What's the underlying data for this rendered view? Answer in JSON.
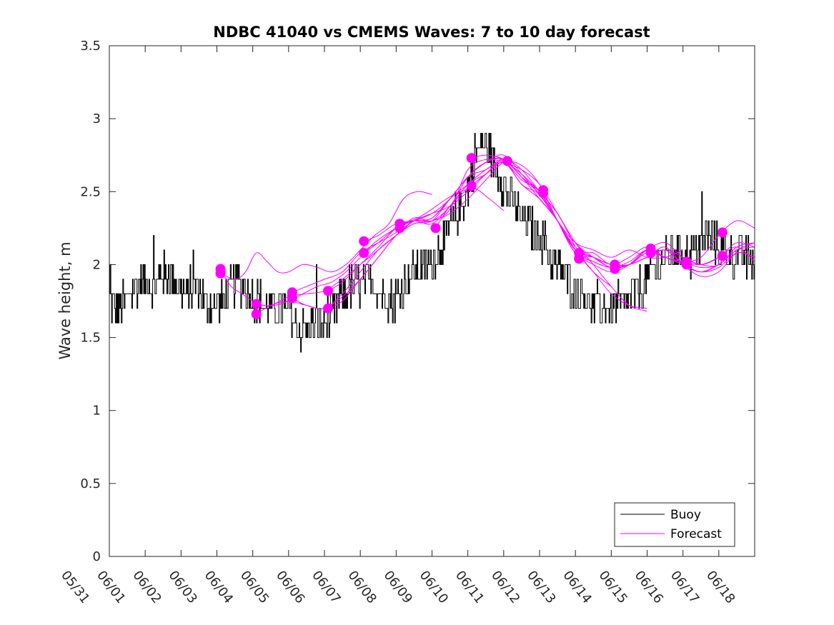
{
  "chart_data": {
    "type": "line",
    "title": "NDBC 41040 vs CMEMS Waves: 7 to 10 day forecast",
    "xlabel": "",
    "ylabel": "Wave height, m",
    "xlim": [
      0,
      18
    ],
    "ylim": [
      0,
      3.5
    ],
    "categories": [
      "05/31",
      "06/01",
      "06/02",
      "06/03",
      "06/04",
      "06/05",
      "06/06",
      "06/07",
      "06/08",
      "06/09",
      "06/10",
      "06/11",
      "06/12",
      "06/13",
      "06/14",
      "06/15",
      "06/16",
      "06/17",
      "06/18"
    ],
    "yticks": [
      "0",
      "0.5",
      "1",
      "1.5",
      "2",
      "2.5",
      "3",
      "3.5"
    ],
    "grid": false,
    "legend_position": "bottom-right",
    "colors": {
      "buoy": "#000000",
      "forecast": "#ff00ff"
    },
    "series": [
      {
        "name": "Buoy",
        "x": [
          0,
          0.3,
          0.6,
          0.9,
          1.2,
          1.5,
          1.8,
          2.1,
          2.4,
          2.7,
          3.0,
          3.3,
          3.6,
          3.9,
          4.2,
          4.5,
          4.8,
          5.1,
          5.3,
          5.5,
          5.8,
          6.1,
          6.4,
          6.7,
          7.0,
          7.3,
          7.6,
          7.9,
          8.2,
          8.5,
          8.8,
          9.1,
          9.4,
          9.7,
          10.0,
          10.2,
          10.4,
          10.6,
          10.8,
          11.1,
          11.4,
          11.7,
          12.0,
          12.3,
          12.6,
          12.9,
          13.2,
          13.5,
          13.8,
          14.1,
          14.4,
          14.7,
          15.0,
          15.3,
          15.6,
          15.9,
          16.2,
          16.5,
          16.8,
          17.1,
          17.4,
          17.7,
          18.0
        ],
        "values": [
          1.75,
          1.7,
          1.8,
          1.9,
          1.85,
          1.95,
          1.9,
          1.8,
          1.85,
          1.75,
          1.7,
          1.8,
          1.9,
          1.8,
          1.75,
          1.7,
          1.7,
          1.65,
          1.55,
          1.55,
          1.6,
          1.6,
          1.75,
          1.85,
          1.85,
          1.9,
          1.8,
          1.75,
          1.85,
          1.95,
          2.0,
          2.05,
          2.2,
          2.35,
          2.5,
          2.75,
          2.85,
          2.75,
          2.65,
          2.5,
          2.35,
          2.25,
          2.2,
          2.05,
          1.95,
          1.85,
          1.8,
          1.7,
          1.7,
          1.7,
          1.75,
          1.8,
          1.9,
          2.0,
          2.05,
          2.1,
          2.05,
          2.15,
          2.2,
          2.1,
          2.05,
          2.05,
          2.0
        ]
      },
      {
        "name": "Forecast",
        "runs": [
          {
            "x": [
              3.1,
              3.4,
              3.7,
              4.0,
              4.3,
              4.6,
              5.0,
              5.4,
              5.8,
              6.2,
              6.6,
              7.0,
              7.4,
              7.8,
              8.2,
              8.6,
              9.0,
              9.4,
              9.8,
              10.2,
              10.6,
              11.0
            ],
            "values": [
              1.96,
              1.85,
              1.8,
              1.75,
              1.72,
              1.72,
              1.75,
              1.8,
              1.85,
              1.88,
              1.95,
              2.05,
              2.15,
              2.22,
              2.28,
              2.32,
              2.38,
              2.45,
              2.5,
              2.52,
              2.45,
              2.37
            ]
          },
          {
            "x": [
              3.1,
              3.5,
              3.8,
              4.1,
              4.4,
              4.7,
              5.0,
              5.4,
              5.8,
              6.2,
              6.6,
              7.0,
              7.4,
              7.8,
              8.2,
              8.6,
              9.0
            ],
            "values": [
              1.94,
              1.9,
              1.95,
              2.08,
              2.02,
              1.95,
              1.95,
              2.0,
              1.98,
              1.95,
              2.0,
              2.1,
              2.2,
              2.28,
              2.45,
              2.5,
              2.48
            ]
          },
          {
            "x": [
              4.1,
              4.5,
              5.0,
              5.5,
              6.0,
              6.5,
              7.0,
              7.5,
              8.0,
              8.5,
              9.0,
              9.5,
              10.0,
              10.5,
              11.0,
              11.5,
              12.0,
              12.5,
              13.0
            ],
            "values": [
              1.73,
              1.72,
              1.78,
              1.8,
              1.82,
              1.9,
              2.0,
              2.1,
              2.2,
              2.3,
              2.35,
              2.4,
              2.5,
              2.62,
              2.72,
              2.65,
              2.5,
              2.35,
              2.12
            ]
          },
          {
            "x": [
              4.1,
              4.5,
              5.0,
              5.5,
              6.0,
              6.5,
              7.0,
              7.5,
              8.0,
              8.5,
              9.0,
              9.5,
              10.0,
              10.5,
              11.0,
              11.5,
              12.0,
              12.5,
              13.0,
              13.5,
              14.0
            ],
            "values": [
              1.66,
              1.72,
              1.75,
              1.72,
              1.7,
              1.8,
              1.95,
              2.1,
              2.2,
              2.28,
              2.3,
              2.35,
              2.45,
              2.58,
              2.7,
              2.68,
              2.55,
              2.3,
              2.1,
              1.95,
              1.85
            ]
          },
          {
            "x": [
              5.1,
              5.5,
              6.0,
              6.5,
              7.0,
              7.5,
              8.0,
              8.5,
              9.0,
              9.5,
              10.0,
              10.5,
              11.0,
              11.5,
              12.0,
              12.5,
              13.0,
              13.5,
              14.0,
              14.5,
              15.0
            ],
            "values": [
              1.77,
              1.72,
              1.7,
              1.78,
              1.9,
              2.05,
              2.2,
              2.3,
              2.3,
              2.4,
              2.6,
              2.7,
              2.72,
              2.6,
              2.45,
              2.3,
              2.1,
              1.95,
              1.8,
              1.72,
              1.7
            ]
          },
          {
            "x": [
              5.1,
              5.5,
              6.0,
              6.5,
              7.0,
              7.5,
              8.0,
              8.5,
              9.0,
              9.5,
              10.0,
              10.5,
              11.0,
              11.5,
              12.0,
              12.5,
              13.0,
              13.5,
              14.0,
              14.5,
              15.0
            ],
            "values": [
              1.81,
              1.85,
              1.9,
              1.95,
              2.08,
              2.15,
              2.22,
              2.32,
              2.3,
              2.38,
              2.65,
              2.72,
              2.7,
              2.65,
              2.55,
              2.35,
              2.15,
              2.0,
              1.85,
              1.72,
              1.68
            ]
          },
          {
            "x": [
              6.1,
              6.5,
              7.0,
              7.5,
              8.0,
              8.5,
              9.0,
              9.5,
              10.0,
              10.5,
              11.0,
              11.5,
              12.0,
              12.5,
              13.0,
              13.5,
              14.0,
              14.5,
              15.0,
              15.5,
              16.0
            ],
            "values": [
              1.82,
              1.88,
              2.0,
              2.12,
              2.25,
              2.3,
              2.35,
              2.45,
              2.6,
              2.65,
              2.72,
              2.6,
              2.5,
              2.3,
              2.15,
              2.1,
              2.05,
              2.1,
              2.05,
              2.05,
              2.1
            ]
          },
          {
            "x": [
              6.1,
              6.5,
              7.0,
              7.5,
              8.0,
              8.5,
              9.0,
              9.5,
              10.0,
              10.5,
              11.0,
              11.5,
              12.0,
              12.5,
              13.0,
              13.5,
              14.0,
              14.5,
              15.0,
              15.5,
              16.0,
              16.5,
              17.0
            ],
            "values": [
              1.7,
              1.75,
              1.9,
              2.05,
              2.2,
              2.28,
              2.3,
              2.45,
              2.6,
              2.7,
              2.75,
              2.62,
              2.48,
              2.3,
              2.12,
              2.05,
              2.0,
              2.0,
              2.05,
              2.1,
              2.0,
              1.95,
              2.0
            ]
          },
          {
            "x": [
              7.1,
              7.5,
              8.0,
              8.5,
              9.0,
              9.5,
              10.0,
              10.5,
              11.0,
              11.5,
              12.0,
              12.5,
              13.0,
              13.5,
              14.0,
              14.5,
              15.0,
              15.5,
              16.0,
              16.5,
              17.0,
              17.5,
              18.0
            ],
            "values": [
              2.16,
              2.2,
              2.28,
              2.3,
              2.32,
              2.45,
              2.55,
              2.65,
              2.7,
              2.62,
              2.5,
              2.35,
              2.15,
              2.05,
              1.98,
              2.0,
              2.05,
              2.1,
              2.05,
              2.0,
              2.05,
              2.15,
              2.12
            ]
          },
          {
            "x": [
              7.1,
              7.5,
              8.0,
              8.5,
              9.0,
              9.5,
              10.0,
              10.5,
              11.0,
              11.5,
              12.0,
              12.5,
              13.0,
              13.5,
              14.0,
              14.5,
              15.0,
              15.5,
              16.0,
              16.5,
              17.0,
              17.5,
              18.0
            ],
            "values": [
              2.08,
              2.15,
              2.25,
              2.3,
              2.28,
              2.4,
              2.55,
              2.62,
              2.7,
              2.55,
              2.45,
              2.3,
              2.1,
              2.02,
              1.98,
              2.0,
              2.05,
              2.12,
              2.0,
              1.92,
              1.95,
              2.08,
              2.05
            ]
          },
          {
            "x": [
              8.1,
              8.5,
              9.0,
              9.5,
              10.0,
              10.5,
              11.0,
              11.5,
              12.0,
              12.5,
              13.0,
              13.5,
              14.0,
              14.5,
              15.0,
              15.5,
              16.0,
              16.5,
              17.0,
              17.5,
              18.0
            ],
            "values": [
              2.28,
              2.3,
              2.32,
              2.45,
              2.6,
              2.7,
              2.72,
              2.55,
              2.48,
              2.3,
              2.1,
              2.05,
              1.98,
              2.0,
              2.1,
              2.15,
              2.05,
              2.0,
              2.0,
              2.12,
              2.15
            ]
          },
          {
            "x": [
              9.1,
              9.5,
              10.0,
              10.5,
              11.0,
              11.5,
              12.0,
              12.5,
              13.0,
              13.5,
              14.0,
              14.5,
              15.0,
              15.5,
              16.0,
              16.5,
              17.0,
              17.5,
              18.0
            ],
            "values": [
              2.25,
              2.4,
              2.52,
              2.62,
              2.7,
              2.58,
              2.5,
              2.3,
              2.08,
              2.02,
              1.98,
              2.02,
              2.1,
              2.05,
              2.0,
              1.95,
              2.0,
              2.1,
              2.15
            ]
          },
          {
            "x": [
              10.1,
              10.5,
              11.0,
              11.5,
              12.0,
              12.5,
              13.0,
              13.5,
              14.0,
              14.5,
              15.0,
              15.5,
              16.0,
              16.5,
              17.0,
              17.5,
              18.0
            ],
            "values": [
              2.73,
              2.75,
              2.72,
              2.6,
              2.48,
              2.3,
              2.1,
              2.08,
              2.0,
              2.05,
              2.12,
              2.05,
              2.02,
              1.98,
              2.0,
              2.1,
              2.12
            ]
          },
          {
            "x": [
              12.1,
              12.5,
              13.0,
              13.5,
              14.0,
              14.5,
              15.0,
              15.5,
              16.0,
              16.5,
              17.0,
              17.5,
              18.0
            ],
            "values": [
              2.5,
              2.3,
              2.08,
              2.05,
              2.0,
              2.0,
              2.08,
              2.05,
              2.0,
              1.95,
              1.98,
              2.08,
              2.05
            ]
          },
          {
            "x": [
              13.1,
              13.5,
              14.0,
              14.5,
              15.0,
              15.5,
              16.0,
              16.5,
              17.0,
              17.5,
              18.0
            ],
            "values": [
              2.05,
              2.0,
              1.95,
              2.0,
              2.1,
              2.05,
              2.02,
              2.05,
              2.2,
              2.3,
              2.25
            ]
          },
          {
            "x": [
              15.1,
              15.5,
              16.0,
              16.5,
              17.0,
              17.5,
              18.0
            ],
            "values": [
              2.11,
              2.05,
              2.02,
              2.0,
              2.05,
              2.12,
              2.02
            ]
          }
        ],
        "markers": [
          {
            "x": 3.1,
            "y": 1.97
          },
          {
            "x": 3.1,
            "y": 1.94
          },
          {
            "x": 4.1,
            "y": 1.73
          },
          {
            "x": 4.1,
            "y": 1.66
          },
          {
            "x": 5.1,
            "y": 1.81
          },
          {
            "x": 5.1,
            "y": 1.77
          },
          {
            "x": 6.1,
            "y": 1.82
          },
          {
            "x": 6.1,
            "y": 1.7
          },
          {
            "x": 7.1,
            "y": 2.16
          },
          {
            "x": 7.1,
            "y": 2.08
          },
          {
            "x": 8.1,
            "y": 2.28
          },
          {
            "x": 8.1,
            "y": 2.25
          },
          {
            "x": 9.1,
            "y": 2.25
          },
          {
            "x": 10.1,
            "y": 2.73
          },
          {
            "x": 10.1,
            "y": 2.54
          },
          {
            "x": 11.1,
            "y": 2.71
          },
          {
            "x": 12.1,
            "y": 2.51
          },
          {
            "x": 12.1,
            "y": 2.49
          },
          {
            "x": 13.1,
            "y": 2.08
          },
          {
            "x": 13.1,
            "y": 2.04
          },
          {
            "x": 14.1,
            "y": 2.0
          },
          {
            "x": 14.1,
            "y": 1.97
          },
          {
            "x": 15.1,
            "y": 2.11
          },
          {
            "x": 15.1,
            "y": 2.08
          },
          {
            "x": 16.1,
            "y": 2.02
          },
          {
            "x": 16.1,
            "y": 2.0
          },
          {
            "x": 17.1,
            "y": 2.22
          },
          {
            "x": 17.1,
            "y": 2.06
          }
        ]
      }
    ]
  }
}
